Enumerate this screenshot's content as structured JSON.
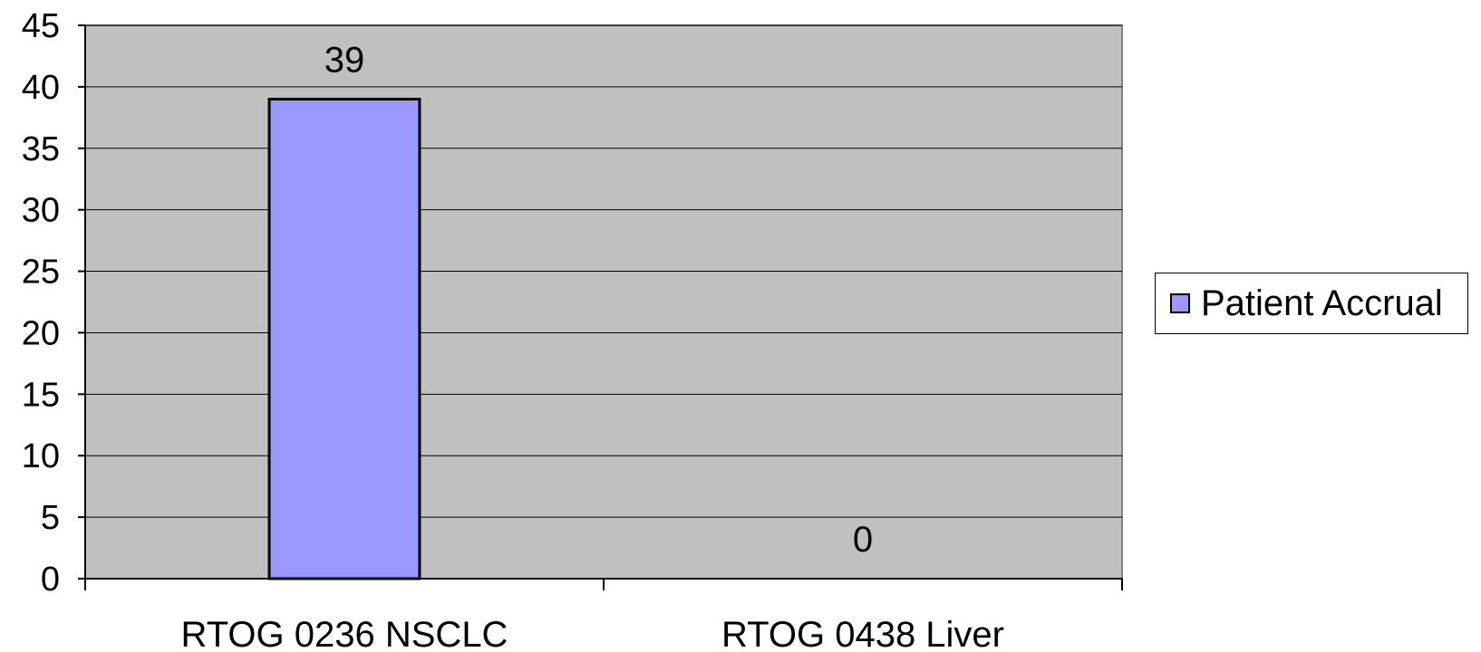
{
  "chart_data": {
    "type": "bar",
    "categories": [
      "RTOG 0236 NSCLC",
      "RTOG 0438 Liver"
    ],
    "series": [
      {
        "name": "Patient Accrual",
        "values": [
          39,
          0
        ],
        "color": "#9999ff"
      }
    ],
    "data_labels": [
      "39",
      "0"
    ],
    "title": "",
    "xlabel": "",
    "ylabel": "",
    "ylim": [
      0,
      45
    ],
    "yticks": [
      0,
      5,
      10,
      15,
      20,
      25,
      30,
      35,
      40,
      45
    ],
    "grid": true,
    "legend": {
      "placement": "right",
      "label": "Patient Accrual"
    },
    "plot_background": "#c0c0c0"
  }
}
